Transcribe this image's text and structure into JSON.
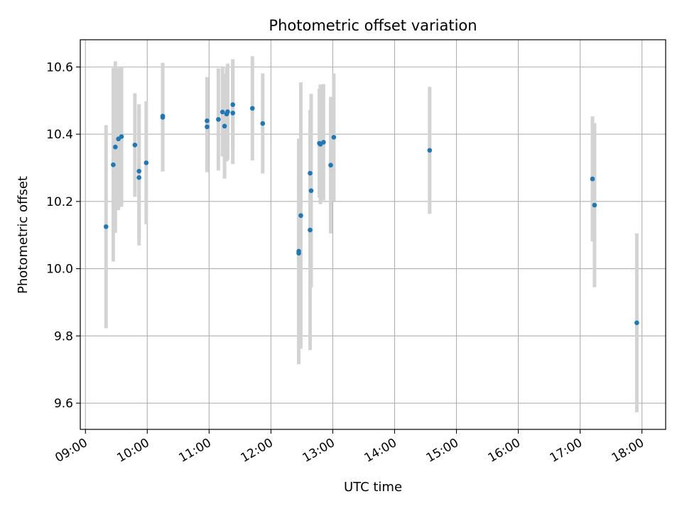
{
  "chart_data": {
    "type": "scatter",
    "title": "Photometric offset variation",
    "xlabel": "UTC time",
    "ylabel": "Photometric offset",
    "xlim": [
      "08:55",
      "18:23"
    ],
    "ylim": [
      9.522,
      10.681
    ],
    "grid": true,
    "x_ticks": [
      "09:00",
      "10:00",
      "11:00",
      "12:00",
      "13:00",
      "14:00",
      "15:00",
      "16:00",
      "17:00",
      "18:00"
    ],
    "y_ticks": [
      9.6,
      9.8,
      10.0,
      10.2,
      10.4,
      10.6
    ],
    "y_tick_labels": [
      "9.6",
      "9.8",
      "10.0",
      "10.2",
      "10.4",
      "10.6"
    ],
    "point_color": "#1f77b4",
    "errorbar_color": "#d3d3d3",
    "points": [
      {
        "x": "09:20",
        "y": 10.125,
        "err": 0.302
      },
      {
        "x": "09:27",
        "y": 10.309,
        "err": 0.288
      },
      {
        "x": "09:29",
        "y": 10.362,
        "err": 0.255
      },
      {
        "x": "09:32",
        "y": 10.386,
        "err": 0.212
      },
      {
        "x": "09:35",
        "y": 10.393,
        "err": 0.209
      },
      {
        "x": "09:48",
        "y": 10.368,
        "err": 0.154
      },
      {
        "x": "09:52",
        "y": 10.29,
        "err": 0.199
      },
      {
        "x": "09:52",
        "y": 10.271,
        "err": 0.202
      },
      {
        "x": "09:59",
        "y": 10.315,
        "err": 0.183
      },
      {
        "x": "10:15",
        "y": 10.454,
        "err": 0.158
      },
      {
        "x": "10:15",
        "y": 10.45,
        "err": 0.161
      },
      {
        "x": "10:58",
        "y": 10.422,
        "err": 0.135
      },
      {
        "x": "10:58",
        "y": 10.44,
        "err": 0.13
      },
      {
        "x": "11:09",
        "y": 10.444,
        "err": 0.152
      },
      {
        "x": "11:13",
        "y": 10.466,
        "err": 0.132
      },
      {
        "x": "11:15",
        "y": 10.424,
        "err": 0.156
      },
      {
        "x": "11:17",
        "y": 10.46,
        "err": 0.141
      },
      {
        "x": "11:18",
        "y": 10.467,
        "err": 0.143
      },
      {
        "x": "11:23",
        "y": 10.463,
        "err": 0.152
      },
      {
        "x": "11:23",
        "y": 10.488,
        "err": 0.135
      },
      {
        "x": "11:42",
        "y": 10.477,
        "err": 0.155
      },
      {
        "x": "11:52",
        "y": 10.432,
        "err": 0.149
      },
      {
        "x": "12:27",
        "y": 10.052,
        "err": 0.335
      },
      {
        "x": "12:27",
        "y": 10.046,
        "err": 0.33
      },
      {
        "x": "12:29",
        "y": 10.158,
        "err": 0.396
      },
      {
        "x": "12:38",
        "y": 10.115,
        "err": 0.357
      },
      {
        "x": "12:38",
        "y": 10.284,
        "err": 0.187
      },
      {
        "x": "12:39",
        "y": 10.232,
        "err": 0.288
      },
      {
        "x": "12:47",
        "y": 10.373,
        "err": 0.162
      },
      {
        "x": "12:48",
        "y": 10.37,
        "err": 0.178
      },
      {
        "x": "12:51",
        "y": 10.376,
        "err": 0.173
      },
      {
        "x": "12:58",
        "y": 10.308,
        "err": 0.203
      },
      {
        "x": "13:01",
        "y": 10.391,
        "err": 0.19
      },
      {
        "x": "14:34",
        "y": 10.352,
        "err": 0.189
      },
      {
        "x": "17:12",
        "y": 10.267,
        "err": 0.186
      },
      {
        "x": "17:14",
        "y": 10.189,
        "err": 0.244
      },
      {
        "x": "17:55",
        "y": 9.839,
        "err": 0.266
      }
    ]
  }
}
